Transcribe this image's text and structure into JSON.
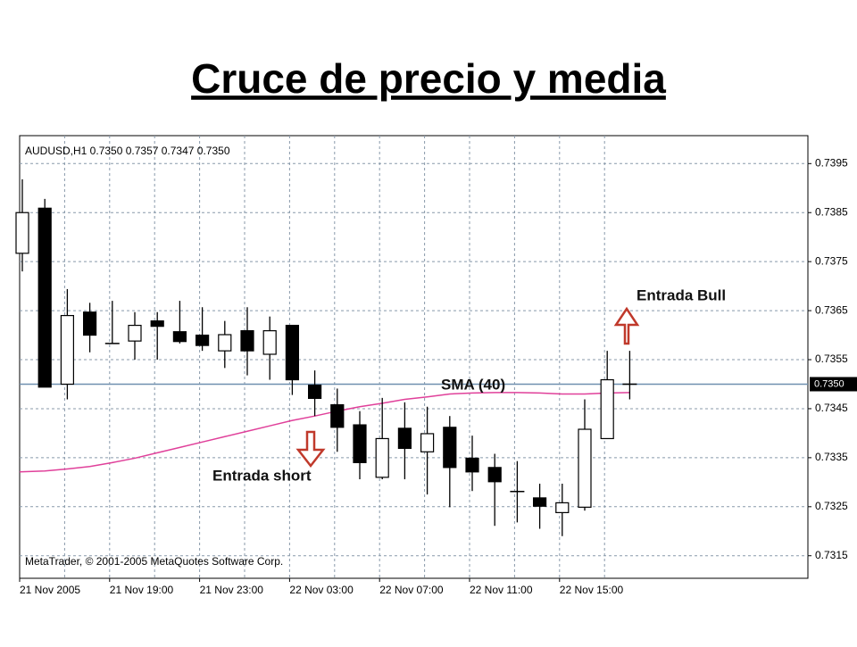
{
  "chart_data": {
    "type": "candlestick",
    "title": "Cruce de precio y media",
    "subtitle": "AUDUSD,H1  0.7350 0.7357 0.7347 0.7350",
    "footer": "MetaTrader, © 2001-2005 MetaQuotes Software Corp.",
    "annotations": [
      "Entrada Bull",
      "Entrada short"
    ],
    "categories": [
      "21 Nov 2005",
      null,
      null,
      null,
      "21 Nov 19:00",
      null,
      null,
      null,
      "21 Nov 23:00",
      null,
      null,
      null,
      "22 Nov 03:00",
      null,
      null,
      null,
      "22 Nov 07:00",
      null,
      null,
      null,
      "22 Nov 11:00",
      null,
      null,
      null,
      "22 Nov 15:00",
      null,
      null,
      null
    ],
    "open": [
      0.73767,
      0.73859,
      0.735,
      0.73647,
      0.73583,
      0.73588,
      0.73629,
      0.73607,
      0.736,
      0.73568,
      0.73609,
      0.73561,
      0.7362,
      0.73498,
      0.73458,
      0.73417,
      0.7331,
      0.7341,
      0.73362,
      0.73412,
      0.73349,
      0.7333,
      0.73281,
      0.73268,
      0.73238,
      0.73249,
      0.73389,
      0.735
    ],
    "high": [
      0.73918,
      0.73878,
      0.73694,
      0.73666,
      0.7367,
      0.73647,
      0.73647,
      0.7367,
      0.73657,
      0.73629,
      0.73657,
      0.73638,
      0.7362,
      0.73528,
      0.73491,
      0.73445,
      0.73472,
      0.73463,
      0.73454,
      0.73435,
      0.73395,
      0.73358,
      0.73343,
      0.73297,
      0.73297,
      0.73469,
      0.73568,
      0.73568
    ],
    "low": [
      0.7373,
      0.73494,
      0.73469,
      0.73565,
      0.73583,
      0.7355,
      0.7355,
      0.73583,
      0.73568,
      0.73533,
      0.73518,
      0.73509,
      0.73478,
      0.73435,
      0.73362,
      0.73306,
      0.73306,
      0.73306,
      0.73275,
      0.73249,
      0.73282,
      0.73211,
      0.73218,
      0.73205,
      0.7319,
      0.73242,
      0.73389,
      0.73469
    ],
    "close": [
      0.7385,
      0.73494,
      0.7364,
      0.736,
      0.73583,
      0.7362,
      0.73618,
      0.73587,
      0.73579,
      0.73601,
      0.73568,
      0.73609,
      0.73509,
      0.73471,
      0.73412,
      0.7334,
      0.73389,
      0.73369,
      0.73399,
      0.7333,
      0.73321,
      0.73301,
      0.73281,
      0.73251,
      0.73258,
      0.73408,
      0.73509,
      0.735
    ],
    "up_color": "#ffffff",
    "down_color": "#000000",
    "sma": {
      "name": "SMA (40)",
      "color": "#e0409a",
      "values": [
        0.73321,
        0.73323,
        0.73327,
        0.73332,
        0.7334,
        0.73349,
        0.7336,
        0.73371,
        0.73382,
        0.73393,
        0.73404,
        0.73415,
        0.73426,
        0.73435,
        0.73445,
        0.73454,
        0.73461,
        0.73469,
        0.73474,
        0.7348,
        0.73482,
        0.73483,
        0.73483,
        0.73482,
        0.7348,
        0.7348,
        0.73482,
        0.73483
      ]
    },
    "last_price": {
      "value": 0.735,
      "label": "0.7350"
    },
    "ylim": [
      0.73104,
      0.74007
    ],
    "yticks": [
      0.7315,
      0.7325,
      0.7335,
      0.7345,
      0.7355,
      0.7365,
      0.7375,
      0.7385,
      0.7395
    ],
    "grid": true
  }
}
